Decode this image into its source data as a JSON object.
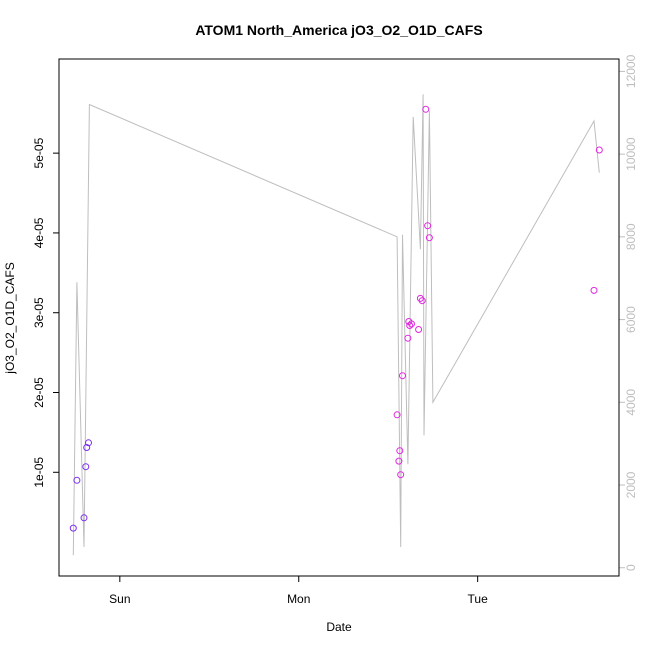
{
  "chart_data": {
    "type": "scatter",
    "title": "ATOM1 North_America jO3_O2_O1D_CAFS",
    "xlabel": "Date",
    "ylabel": "jO3_O2_O1D_CAFS",
    "x_ticks": [
      "Sun",
      "Mon",
      "Tue"
    ],
    "x_tick_days": [
      1,
      2,
      3
    ],
    "x_range_days": [
      0.66,
      3.79
    ],
    "y_ticks": [
      "1e-05",
      "2e-05",
      "3e-05",
      "4e-05",
      "5e-05"
    ],
    "y_tick_values": [
      1e-05,
      2e-05,
      3e-05,
      4e-05,
      5e-05
    ],
    "ylim": [
      -3e-06,
      6.18e-05
    ],
    "y2_ticks": [
      "0",
      "2000",
      "4000",
      "6000",
      "8000",
      "10000",
      "12000"
    ],
    "y2_tick_values": [
      0,
      2000,
      4000,
      6000,
      8000,
      10000,
      12000
    ],
    "y2lim": [
      -200,
      12300
    ],
    "colors": {
      "early_points": "#7b2ff2",
      "late_points": "#e028e0",
      "altitude_line": "#bebebe",
      "axis": "#000000",
      "y2_axis": "#bebebe"
    },
    "points": [
      {
        "x": 0.74,
        "y": 3e-06,
        "c": "early"
      },
      {
        "x": 0.76,
        "y": 9e-06,
        "c": "early"
      },
      {
        "x": 0.8,
        "y": 4.3e-06,
        "c": "early"
      },
      {
        "x": 0.81,
        "y": 1.07e-05,
        "c": "early"
      },
      {
        "x": 0.815,
        "y": 1.31e-05,
        "c": "early"
      },
      {
        "x": 0.825,
        "y": 1.37e-05,
        "c": "early"
      },
      {
        "x": 2.55,
        "y": 1.72e-05,
        "c": "late"
      },
      {
        "x": 2.56,
        "y": 1.14e-05,
        "c": "late"
      },
      {
        "x": 2.565,
        "y": 1.27e-05,
        "c": "late"
      },
      {
        "x": 2.57,
        "y": 9.7e-06,
        "c": "late"
      },
      {
        "x": 2.58,
        "y": 2.21e-05,
        "c": "late"
      },
      {
        "x": 2.61,
        "y": 2.68e-05,
        "c": "late"
      },
      {
        "x": 2.615,
        "y": 2.89e-05,
        "c": "late"
      },
      {
        "x": 2.62,
        "y": 2.84e-05,
        "c": "late"
      },
      {
        "x": 2.63,
        "y": 2.86e-05,
        "c": "late"
      },
      {
        "x": 2.67,
        "y": 2.79e-05,
        "c": "late"
      },
      {
        "x": 2.68,
        "y": 3.18e-05,
        "c": "late"
      },
      {
        "x": 2.69,
        "y": 3.15e-05,
        "c": "late"
      },
      {
        "x": 2.71,
        "y": 5.55e-05,
        "c": "late"
      },
      {
        "x": 2.72,
        "y": 4.09e-05,
        "c": "late"
      },
      {
        "x": 2.73,
        "y": 3.94e-05,
        "c": "late"
      },
      {
        "x": 3.65,
        "y": 3.28e-05,
        "c": "late"
      },
      {
        "x": 3.68,
        "y": 5.04e-05,
        "c": "late"
      }
    ],
    "altitude_line": [
      {
        "x": 0.74,
        "y2": 300
      },
      {
        "x": 0.76,
        "y2": 6900
      },
      {
        "x": 0.8,
        "y2": 500
      },
      {
        "x": 0.83,
        "y2": 11200
      },
      {
        "x": 2.55,
        "y2": 8000
      },
      {
        "x": 2.57,
        "y": 0,
        "y2": 500
      },
      {
        "x": 2.58,
        "y2": 8050
      },
      {
        "x": 2.61,
        "y2": 2500
      },
      {
        "x": 2.64,
        "y2": 10900
      },
      {
        "x": 2.68,
        "y2": 7700
      },
      {
        "x": 2.695,
        "y2": 11450
      },
      {
        "x": 2.7,
        "y2": 3200
      },
      {
        "x": 2.73,
        "y2": 11050
      },
      {
        "x": 2.75,
        "y2": 4000
      },
      {
        "x": 3.65,
        "y2": 10800
      },
      {
        "x": 3.68,
        "y2": 9550
      }
    ]
  }
}
